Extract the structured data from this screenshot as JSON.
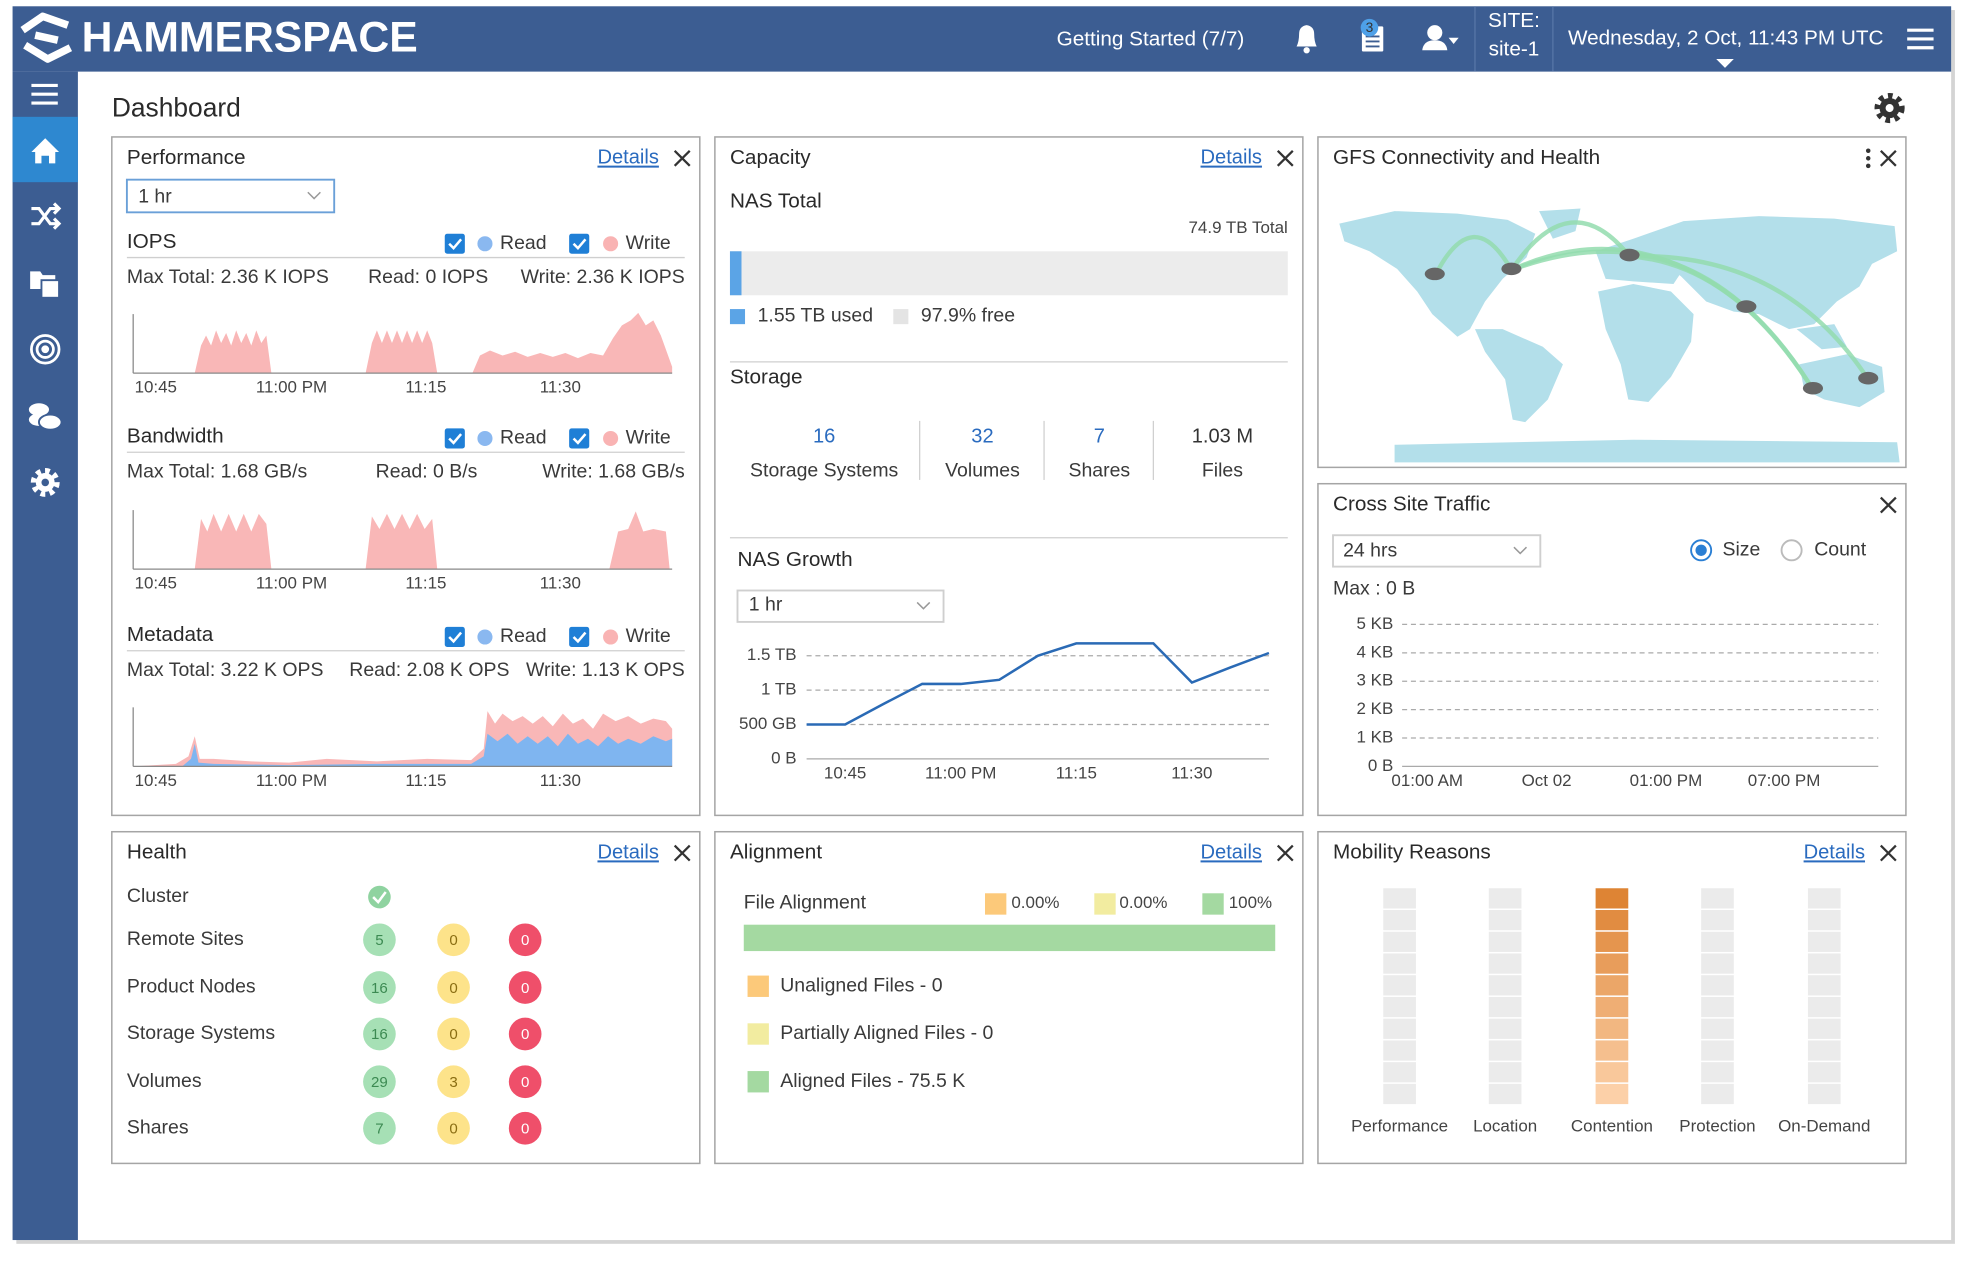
{
  "header": {
    "brand": "HAMMERSPACE",
    "getting_started": "Getting Started (7/7)",
    "notifications": 3,
    "site_label": "SITE:",
    "site": "site-1",
    "datetime": "Wednesday, 2 Oct, 11:43 PM UTC"
  },
  "page_title": "Dashboard",
  "performance": {
    "title": "Performance",
    "details": "Details",
    "range": "1 hr",
    "sections": [
      {
        "title": "IOPS",
        "read_legend": "Read",
        "write_legend": "Write",
        "max_total": "Max Total: 2.36 K IOPS",
        "read": "Read: 0 IOPS",
        "write": "Write: 2.36 K IOPS",
        "x_labels": [
          "10:45",
          "11:00 PM",
          "11:15",
          "11:30"
        ]
      },
      {
        "title": "Bandwidth",
        "read_legend": "Read",
        "write_legend": "Write",
        "max_total": "Max Total: 1.68 GB/s",
        "read": "Read: 0 B/s",
        "write": "Write: 1.68 GB/s",
        "x_labels": [
          "10:45",
          "11:00 PM",
          "11:15",
          "11:30"
        ]
      },
      {
        "title": "Metadata",
        "read_legend": "Read",
        "write_legend": "Write",
        "max_total": "Max Total: 3.22 K OPS",
        "read": "Read: 2.08 K OPS",
        "write": "Write: 1.13 K OPS",
        "x_labels": [
          "10:45",
          "11:00 PM",
          "11:15",
          "11:30"
        ]
      }
    ]
  },
  "capacity": {
    "title": "Capacity",
    "details": "Details",
    "nas_total": "NAS Total",
    "total": {
      "value": 74.9,
      "label": "74.9 TB Total"
    },
    "used": {
      "value": 1.55,
      "label": "1.55 TB used"
    },
    "free": "97.9% free",
    "storage_title": "Storage",
    "storage_stats": [
      {
        "count": 16,
        "name": "Storage Systems"
      },
      {
        "count": 32,
        "name": "Volumes"
      },
      {
        "count": 7,
        "name": "Shares"
      },
      {
        "count": "1.03 M",
        "name": "Files"
      }
    ],
    "nas_growth": {
      "title": "NAS Growth",
      "range": "1 hr",
      "chart": {
        "type": "line",
        "color": "#2a6ab5",
        "grid": true,
        "categories": [
          null,
          "10:45",
          null,
          null,
          "11:00 PM",
          null,
          null,
          "11:15",
          null,
          null,
          "11:30",
          null,
          null
        ],
        "values": [
          0.5,
          0.5,
          0.8,
          1.09,
          1.09,
          1.15,
          1.5,
          1.68,
          1.68,
          1.68,
          1.11,
          1.33,
          1.54
        ],
        "ylim": [
          0,
          1.7
        ],
        "yticks": [
          {
            "value": 0,
            "label": "0 B"
          },
          {
            "value": 0.5,
            "label": "500 GB"
          },
          {
            "value": 1,
            "label": "1 TB"
          },
          {
            "value": 1.5,
            "label": "1.5 TB"
          }
        ]
      }
    }
  },
  "gfs": {
    "title": "GFS Connectivity and Health"
  },
  "cross_site": {
    "title": "Cross Site Traffic",
    "range": "24 hrs",
    "modes": [
      "Size",
      "Count"
    ],
    "max": "Max : 0 B",
    "chart": {
      "type": "line",
      "grid": true,
      "x_labels": [
        "01:00 AM",
        "Oct 02",
        "01:00 PM",
        "07:00 PM"
      ],
      "ylim": [
        0,
        5
      ],
      "yticks": [
        {
          "value": 0,
          "label": "0 B"
        },
        {
          "value": 1,
          "label": "1 KB"
        },
        {
          "value": 2,
          "label": "2 KB"
        },
        {
          "value": 3,
          "label": "3 KB"
        },
        {
          "value": 4,
          "label": "4 KB"
        },
        {
          "value": 5,
          "label": "5 KB"
        }
      ]
    }
  },
  "health": {
    "title": "Health",
    "details": "Details",
    "rows": [
      {
        "name": "Cluster"
      },
      {
        "name": "Remote Sites",
        "ok": 5,
        "warning": 0,
        "error": 0
      },
      {
        "name": "Product Nodes",
        "ok": 16,
        "warning": 0,
        "error": 0
      },
      {
        "name": "Storage Systems",
        "ok": 16,
        "warning": 0,
        "error": 0
      },
      {
        "name": "Volumes",
        "ok": 29,
        "warning": 3,
        "error": 0
      },
      {
        "name": "Shares",
        "ok": 7,
        "warning": 0,
        "error": 0
      }
    ]
  },
  "alignment": {
    "title": "Alignment",
    "details": "Details",
    "file_alignment": "File Alignment",
    "segments": [
      {
        "name": "Unaligned Files - 0",
        "color": "#fcc97a",
        "percent": {
          "value": 0,
          "label": "0.00%"
        }
      },
      {
        "name": "Partially Aligned Files - 0",
        "color": "#f2eca0",
        "percent": {
          "value": 0,
          "label": "0.00%"
        }
      },
      {
        "name": "Aligned Files - 75.5 K",
        "color": "#a4d9a1",
        "percent": {
          "value": 100,
          "label": "100%"
        }
      }
    ]
  },
  "mobility": {
    "title": "Mobility Reasons",
    "details": "Details",
    "reasons": [
      "Performance",
      "Location",
      "Contention",
      "Protection",
      "On-Demand"
    ]
  }
}
